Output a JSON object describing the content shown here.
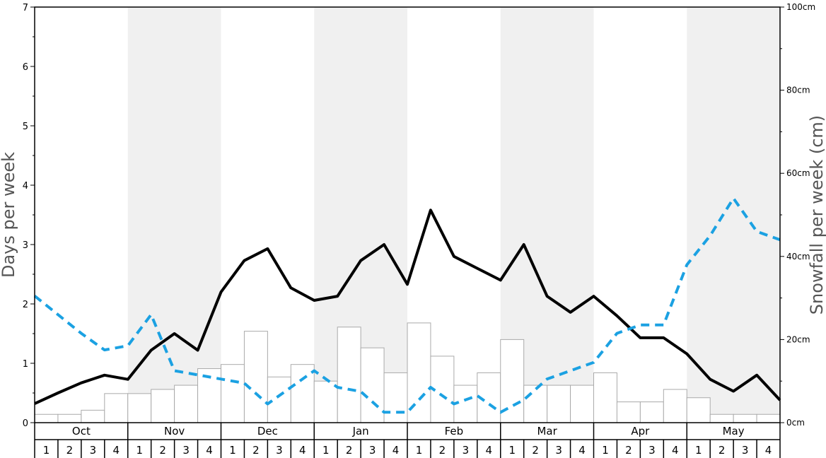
{
  "chart_data": {
    "type": "bar+line",
    "left_axis": {
      "label": "Days per week",
      "ylim": [
        0,
        7
      ],
      "ticks": [
        "0",
        "1",
        "2",
        "3",
        "4",
        "5",
        "6",
        "7"
      ]
    },
    "right_axis": {
      "label": "Snowfall per week (cm)",
      "ylim": [
        0,
        100
      ],
      "ticks": [
        "0cm",
        "20cm",
        "40cm",
        "60cm",
        "80cm",
        "100cm"
      ]
    },
    "months": [
      "Oct",
      "Nov",
      "Dec",
      "Jan",
      "Feb",
      "Mar",
      "Apr",
      "May"
    ],
    "weeks": [
      "1",
      "2",
      "3",
      "4"
    ],
    "shaded_months": [
      "Nov",
      "Jan",
      "Mar",
      "May"
    ],
    "series": [
      {
        "kind": "bar",
        "axis": "right",
        "color": "#ffffff",
        "stroke": "#aaaaaa",
        "values": [
          2,
          2,
          3,
          7,
          7,
          8,
          9,
          13,
          14,
          22,
          11,
          14,
          10,
          23,
          18,
          12,
          24,
          16,
          9,
          12,
          20,
          9,
          9,
          9,
          12,
          5,
          5,
          8,
          6,
          2,
          2,
          2
        ]
      },
      {
        "kind": "line",
        "axis": "left",
        "style": "solid",
        "color": "#000000",
        "values": [
          0.32,
          0.5,
          0.67,
          0.8,
          0.73,
          1.22,
          1.5,
          1.22,
          2.2,
          2.73,
          2.93,
          2.27,
          2.06,
          2.13,
          2.73,
          3.0,
          2.33,
          3.58,
          2.8,
          2.6,
          2.4,
          3.0,
          2.13,
          1.86,
          2.13,
          1.8,
          1.43,
          1.43,
          1.16,
          0.73,
          0.53,
          0.8,
          0.38
        ]
      },
      {
        "kind": "line",
        "axis": "right",
        "style": "dashed",
        "color": "#1ba1e2",
        "values": [
          30.5,
          26,
          21.5,
          17.5,
          18.5,
          26,
          12.5,
          11.5,
          10.5,
          9.5,
          4.5,
          8.5,
          12.5,
          8.5,
          7.5,
          2.5,
          2.5,
          8.5,
          4.5,
          6.5,
          2.5,
          5.5,
          10.5,
          12.5,
          14.5,
          21.5,
          23.5,
          23.5,
          38,
          45,
          54,
          46,
          44
        ]
      }
    ]
  }
}
